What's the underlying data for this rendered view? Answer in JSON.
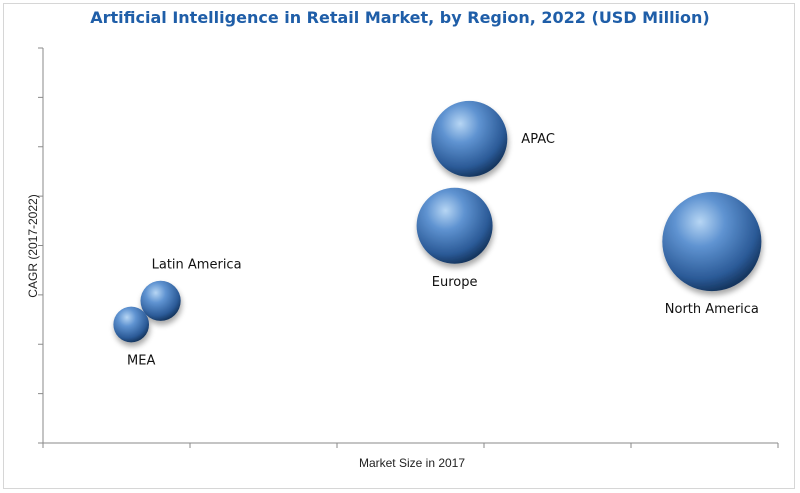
{
  "chart_data": {
    "type": "bubble",
    "title": "Artificial Intelligence in Retail Market, by Region, 2022 (USD Million)",
    "xlabel": "Market Size in 2017",
    "ylabel": "CAGR (2017-2022)",
    "grid": false,
    "tick_labels_shown": false,
    "series": [
      {
        "name": "APAC",
        "x": 0.58,
        "y": 0.77,
        "size": 1.0
      },
      {
        "name": "Europe",
        "x": 0.56,
        "y": 0.55,
        "size": 1.0
      },
      {
        "name": "North America",
        "x": 0.91,
        "y": 0.51,
        "size": 1.7
      },
      {
        "name": "Latin America",
        "x": 0.16,
        "y": 0.36,
        "size": 0.28
      },
      {
        "name": "MEA",
        "x": 0.12,
        "y": 0.3,
        "size": 0.22
      }
    ],
    "colors": {
      "bubble_light": "#9cc4ec",
      "bubble_mid": "#4a7fc4",
      "bubble_dark": "#173a66",
      "title": "#1f5ea8"
    }
  }
}
